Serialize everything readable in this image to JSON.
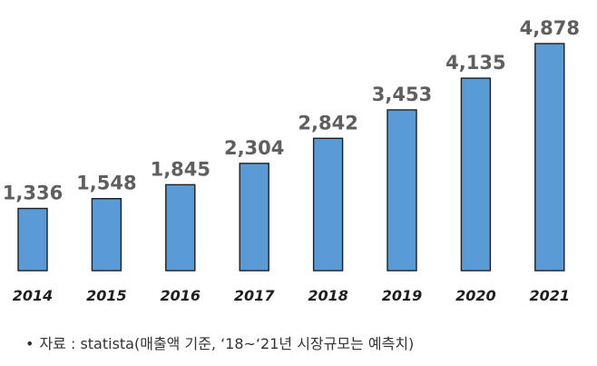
{
  "chart_data": {
    "type": "bar",
    "categories": [
      "2014",
      "2015",
      "2016",
      "2017",
      "2018",
      "2019",
      "2020",
      "2021"
    ],
    "values": [
      1336,
      1548,
      1845,
      2304,
      2842,
      3453,
      4135,
      4878
    ],
    "value_labels": [
      "1,336",
      "1,548",
      "1,845",
      "2,304",
      "2,842",
      "3,453",
      "4,135",
      "4,878"
    ],
    "title": "",
    "xlabel": "",
    "ylabel": "",
    "grid": false,
    "bar_color": "#5b9bd5",
    "bar_outline_color": "#1e1e1e"
  },
  "footnote": {
    "bullet": "•",
    "text": "자료 : statista(매출액 기준, ‘18~‘21년 시장규모는 예측치)"
  }
}
